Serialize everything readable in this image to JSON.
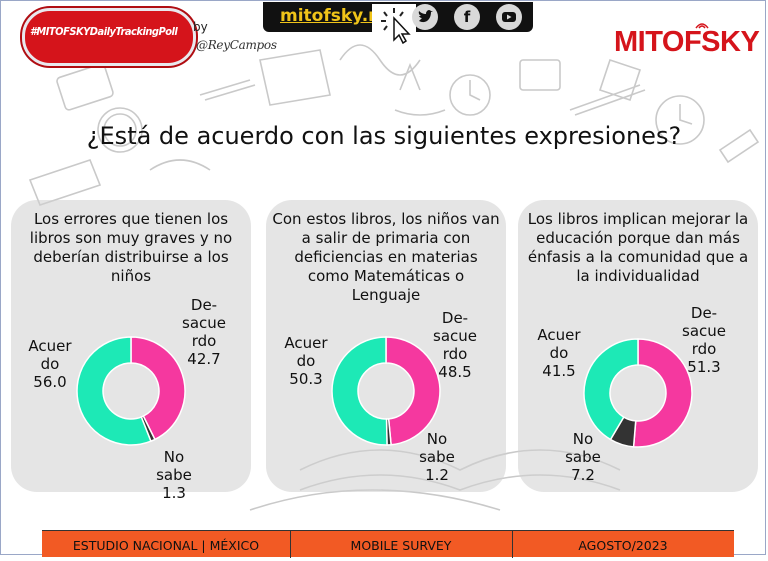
{
  "header": {
    "hashtag": "#MITOFSKYDailyTrackingPoll",
    "by": "by",
    "signature": "@ReyCampos",
    "site": "mitofsky.mx",
    "brand": "MITOFSKY",
    "social": [
      "twitter-icon",
      "facebook-icon",
      "youtube-icon"
    ]
  },
  "title": "¿Está de acuerdo con las siguientes expresiones?",
  "colors": {
    "acuerdo": "#1de9b6",
    "desacuerdo": "#f5389f",
    "no_sabe": "#333333",
    "brand": "#d5141b",
    "footer": "#f25a24"
  },
  "chart_data": [
    {
      "type": "pie",
      "title": "Los errores que tienen los libros son muy graves y no deberían distribuirse a los niños",
      "categories": [
        "Acuerdo",
        "Desacuerdo",
        "No sabe"
      ],
      "values": [
        56.0,
        42.7,
        1.3
      ],
      "labels": {
        "acuerdo": "Acuer\ndo\n56.0",
        "desacuerdo": "De-\nsacue\nrdo\n42.7",
        "no_sabe": "No\nsabe\n1.3"
      }
    },
    {
      "type": "pie",
      "title": "Con estos libros, los niños van a salir de primaria con deficiencias en materias como Matemáticas o Lenguaje",
      "categories": [
        "Acuerdo",
        "Desacuerdo",
        "No sabe"
      ],
      "values": [
        50.3,
        48.5,
        1.2
      ],
      "labels": {
        "acuerdo": "Acuer\ndo\n50.3",
        "desacuerdo": "De-\nsacue\nrdo\n48.5",
        "no_sabe": "No\nsabe\n1.2"
      }
    },
    {
      "type": "pie",
      "title": "Los libros implican mejorar la educación porque dan más énfasis a la comunidad que a la individualidad",
      "categories": [
        "Acuerdo",
        "Desacuerdo",
        "No sabe"
      ],
      "values": [
        41.5,
        51.3,
        7.2
      ],
      "labels": {
        "acuerdo": "Acuer\ndo\n41.5",
        "desacuerdo": "De-\nsacue\nrdo\n51.3",
        "no_sabe": "No\nsabe\n7.2"
      }
    }
  ],
  "footer": {
    "study": "ESTUDIO NACIONAL | MÉXICO",
    "method": "MOBILE SURVEY",
    "date": "AGOSTO/2023"
  }
}
